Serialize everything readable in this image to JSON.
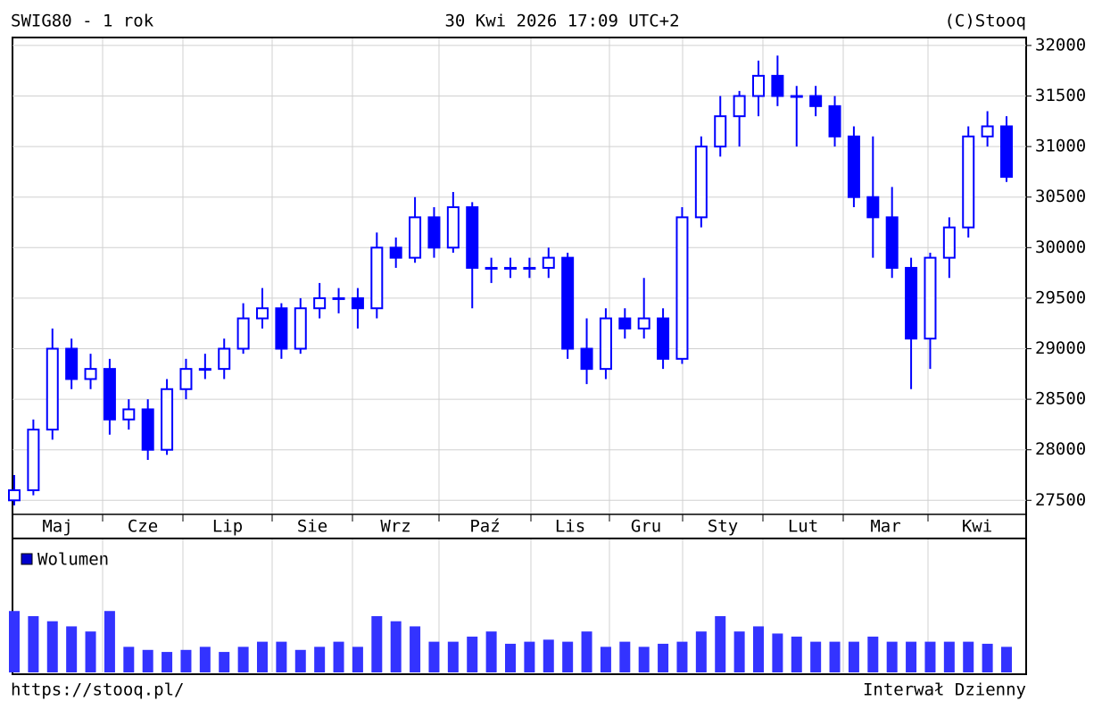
{
  "chart_data": {
    "type": "candlestick",
    "title": "SWIG80 - 1 rok",
    "subtitle": "30 Kwi 2026 17:09 UTC+2",
    "source": "(C)Stooq",
    "footer_left": "https://stooq.pl/",
    "footer_right": "Interwał Dzienny",
    "months": [
      "Maj",
      "Cze",
      "Lip",
      "Sie",
      "Wrz",
      "Paź",
      "Lis",
      "Gru",
      "Sty",
      "Lut",
      "Mar",
      "Kwi"
    ],
    "color": "#0000ff",
    "ylim": [
      27370,
      32070
    ],
    "yticks": [
      27500,
      28000,
      28500,
      29000,
      29500,
      30000,
      30500,
      31000,
      31500,
      32000
    ],
    "grid": true,
    "open": [
      27500,
      27600,
      28200,
      29000,
      28700,
      28800,
      28300,
      28400,
      28000,
      28600,
      28800,
      28800,
      29000,
      29300,
      29400,
      29000,
      29400,
      29500,
      29500,
      29400,
      30000,
      29900,
      30300,
      30000,
      30400,
      29800,
      29800,
      29800,
      29800,
      29900,
      29000,
      28800,
      29300,
      29200,
      29300,
      28900,
      30300,
      31000,
      31300,
      31500,
      31700,
      31500,
      31500,
      31400,
      31100,
      30500,
      30300,
      29800,
      29100,
      29900,
      30200,
      31100,
      31200
    ],
    "high": [
      27750,
      28300,
      29200,
      29100,
      28950,
      28900,
      28500,
      28500,
      28700,
      28900,
      28950,
      29100,
      29450,
      29600,
      29450,
      29500,
      29650,
      29600,
      29600,
      30150,
      30100,
      30500,
      30400,
      30550,
      30450,
      29900,
      29900,
      29900,
      30000,
      29950,
      29300,
      29400,
      29400,
      29700,
      29400,
      30400,
      31100,
      31500,
      31550,
      31850,
      31900,
      31600,
      31600,
      31500,
      31200,
      31100,
      30600,
      29900,
      29950,
      30300,
      31200,
      31350,
      31300
    ],
    "low": [
      27450,
      27550,
      28100,
      28600,
      28600,
      28150,
      28200,
      27900,
      27950,
      28500,
      28700,
      28700,
      28950,
      29200,
      28900,
      28950,
      29300,
      29350,
      29200,
      29300,
      29800,
      29850,
      29900,
      29950,
      29400,
      29650,
      29700,
      29700,
      29700,
      28900,
      28650,
      28700,
      29100,
      29100,
      28800,
      28850,
      30200,
      30900,
      31000,
      31300,
      31400,
      31000,
      31300,
      31000,
      30400,
      29900,
      29700,
      28600,
      28800,
      29700,
      30100,
      31000,
      30650
    ],
    "close": [
      27600,
      28200,
      29000,
      28700,
      28800,
      28300,
      28400,
      28000,
      28600,
      28800,
      28800,
      29000,
      29300,
      29400,
      29000,
      29400,
      29500,
      29500,
      29400,
      30000,
      29900,
      30300,
      30000,
      30400,
      29800,
      29800,
      29800,
      29800,
      29900,
      29000,
      28800,
      29300,
      29200,
      29300,
      28900,
      30300,
      31000,
      31300,
      31500,
      31700,
      31500,
      31500,
      31400,
      31100,
      30500,
      30300,
      29800,
      29100,
      29900,
      30200,
      31100,
      31200,
      30700
    ],
    "volume_name": "Wolumen",
    "volume_color": "#3333ff",
    "vlim": [
      0,
      130
    ],
    "volume": [
      60,
      55,
      50,
      45,
      40,
      60,
      25,
      22,
      20,
      22,
      25,
      20,
      25,
      30,
      30,
      22,
      25,
      30,
      25,
      55,
      50,
      45,
      30,
      30,
      35,
      40,
      28,
      30,
      32,
      30,
      40,
      25,
      30,
      25,
      28,
      30,
      40,
      55,
      40,
      45,
      38,
      35,
      30,
      30,
      30,
      35,
      30,
      30,
      30,
      30,
      30,
      28,
      25
    ]
  }
}
